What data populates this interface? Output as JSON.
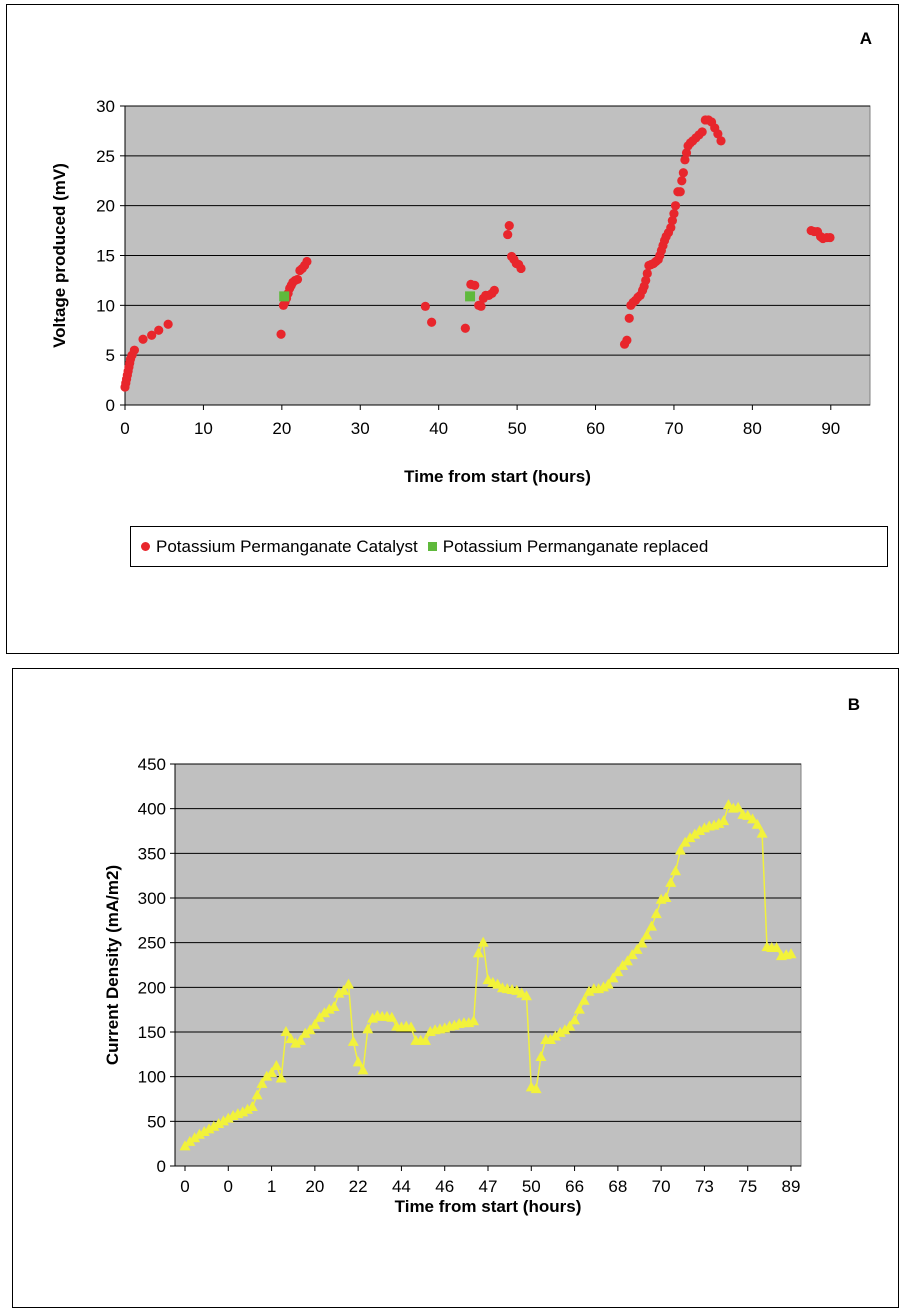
{
  "colors": {
    "plot_bg": "#c0c0c0",
    "series_a1": "#e8262c",
    "series_a2": "#5fb93c",
    "series_b": "#f2f23a",
    "grid": "#000000"
  },
  "chart_data": [
    {
      "type": "scatter",
      "panel_label": "A",
      "xlabel": "Time from start (hours)",
      "ylabel": "Voltage produced (mV)",
      "xlim": [
        0,
        95
      ],
      "ylim": [
        0,
        30
      ],
      "xticks": [
        0,
        10,
        20,
        30,
        40,
        50,
        60,
        70,
        80,
        90
      ],
      "yticks": [
        0,
        5,
        10,
        15,
        20,
        25,
        30
      ],
      "grid": true,
      "legend_position": "bottom",
      "series": [
        {
          "name": "Potassium Permanganate Catalyst",
          "marker": "circle",
          "points": [
            [
              0,
              1.8
            ],
            [
              0.1,
              2.2
            ],
            [
              0.2,
              2.6
            ],
            [
              0.3,
              3.0
            ],
            [
              0.4,
              3.4
            ],
            [
              0.5,
              3.8
            ],
            [
              0.6,
              4.2
            ],
            [
              0.7,
              4.6
            ],
            [
              0.9,
              5.0
            ],
            [
              1.2,
              5.5
            ],
            [
              2.3,
              6.6
            ],
            [
              3.4,
              7.0
            ],
            [
              4.3,
              7.5
            ],
            [
              5.5,
              8.1
            ],
            [
              19.9,
              7.1
            ],
            [
              20.2,
              10.0
            ],
            [
              20.4,
              10.3
            ],
            [
              20.6,
              10.7
            ],
            [
              20.8,
              11.2
            ],
            [
              21.0,
              11.7
            ],
            [
              21.2,
              12.0
            ],
            [
              21.4,
              12.3
            ],
            [
              21.7,
              12.5
            ],
            [
              22.0,
              12.6
            ],
            [
              22.3,
              13.5
            ],
            [
              22.6,
              13.7
            ],
            [
              22.9,
              14.0
            ],
            [
              23.2,
              14.4
            ],
            [
              38.3,
              9.9
            ],
            [
              39.1,
              8.3
            ],
            [
              43.4,
              7.7
            ],
            [
              44.1,
              12.1
            ],
            [
              44.6,
              12.0
            ],
            [
              45.1,
              10.0
            ],
            [
              45.4,
              9.9
            ],
            [
              45.7,
              10.7
            ],
            [
              46.0,
              11.0
            ],
            [
              46.4,
              11.0
            ],
            [
              46.8,
              11.2
            ],
            [
              47.1,
              11.5
            ],
            [
              48.8,
              17.1
            ],
            [
              49.0,
              18.0
            ],
            [
              49.3,
              14.9
            ],
            [
              49.6,
              14.6
            ],
            [
              49.9,
              14.2
            ],
            [
              50.2,
              14.1
            ],
            [
              50.5,
              13.7
            ],
            [
              63.7,
              6.1
            ],
            [
              64.0,
              6.5
            ],
            [
              64.3,
              8.7
            ],
            [
              64.5,
              10.0
            ],
            [
              64.8,
              10.3
            ],
            [
              65.1,
              10.5
            ],
            [
              65.4,
              10.8
            ],
            [
              65.7,
              11.0
            ],
            [
              66.0,
              11.5
            ],
            [
              66.2,
              11.9
            ],
            [
              66.4,
              12.5
            ],
            [
              66.6,
              13.2
            ],
            [
              66.8,
              14.0
            ],
            [
              67.1,
              14.1
            ],
            [
              67.4,
              14.2
            ],
            [
              67.7,
              14.4
            ],
            [
              68.0,
              14.6
            ],
            [
              68.2,
              15.0
            ],
            [
              68.4,
              15.5
            ],
            [
              68.6,
              16.0
            ],
            [
              68.8,
              16.5
            ],
            [
              69.0,
              16.9
            ],
            [
              69.3,
              17.3
            ],
            [
              69.6,
              17.8
            ],
            [
              69.8,
              18.5
            ],
            [
              70.0,
              19.2
            ],
            [
              70.2,
              20.0
            ],
            [
              70.5,
              21.4
            ],
            [
              70.8,
              21.4
            ],
            [
              71.0,
              22.5
            ],
            [
              71.2,
              23.3
            ],
            [
              71.4,
              24.6
            ],
            [
              71.6,
              25.3
            ],
            [
              71.8,
              26.0
            ],
            [
              72.1,
              26.3
            ],
            [
              72.4,
              26.5
            ],
            [
              72.8,
              26.8
            ],
            [
              73.2,
              27.1
            ],
            [
              73.6,
              27.4
            ],
            [
              74.0,
              28.6
            ],
            [
              74.4,
              28.6
            ],
            [
              74.8,
              28.4
            ],
            [
              75.2,
              27.8
            ],
            [
              75.6,
              27.2
            ],
            [
              76.0,
              26.5
            ],
            [
              87.5,
              17.5
            ],
            [
              87.9,
              17.4
            ],
            [
              88.3,
              17.4
            ],
            [
              88.7,
              16.9
            ],
            [
              89.0,
              16.7
            ],
            [
              89.5,
              16.8
            ],
            [
              89.9,
              16.8
            ]
          ]
        },
        {
          "name": "Potassium Permanganate replaced",
          "marker": "square",
          "points": [
            [
              20.3,
              10.9
            ],
            [
              44.0,
              10.9
            ]
          ]
        }
      ]
    },
    {
      "type": "line",
      "panel_label": "B",
      "xlabel": "Time from start (hours)",
      "ylabel": "Current Density (mA/m2)",
      "ylim": [
        0,
        450
      ],
      "yticks": [
        0,
        50,
        100,
        150,
        200,
        250,
        300,
        350,
        400,
        450
      ],
      "xtick_labels": [
        "0",
        "0",
        "1",
        "20",
        "22",
        "44",
        "46",
        "47",
        "50",
        "66",
        "68",
        "70",
        "73",
        "75",
        "89"
      ],
      "grid": true,
      "marker": "triangle",
      "values": [
        22,
        27,
        31,
        35,
        38,
        41,
        44,
        47,
        50,
        53,
        56,
        58,
        60,
        63,
        66,
        79,
        92,
        100,
        104,
        112,
        98,
        150,
        142,
        137,
        140,
        148,
        152,
        158,
        166,
        171,
        175,
        178,
        193,
        196,
        203,
        139,
        116,
        107,
        153,
        165,
        168,
        167,
        167,
        166,
        156,
        155,
        156,
        155,
        140,
        140,
        140,
        150,
        152,
        153,
        154,
        156,
        157,
        159,
        160,
        160,
        162,
        238,
        250,
        208,
        205,
        203,
        199,
        198,
        197,
        196,
        193,
        190,
        88,
        86,
        122,
        141,
        141,
        145,
        149,
        152,
        156,
        163,
        175,
        185,
        195,
        198,
        198,
        200,
        203,
        210,
        217,
        224,
        229,
        236,
        242,
        249,
        258,
        268,
        282,
        298,
        300,
        317,
        330,
        353,
        362,
        367,
        371,
        375,
        378,
        380,
        381,
        383,
        386,
        404,
        400,
        401,
        393,
        392,
        388,
        382,
        372,
        245,
        244,
        244,
        235,
        236,
        237
      ]
    }
  ]
}
